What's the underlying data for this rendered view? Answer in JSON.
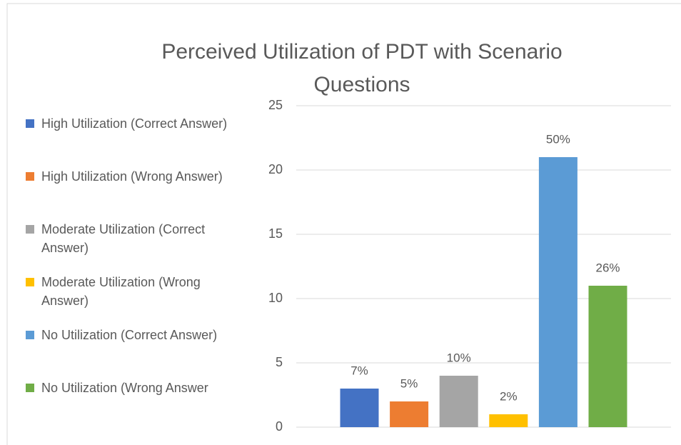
{
  "chart_data": {
    "type": "bar",
    "title": "Perceived Utilization of PDT with Scenario Questions",
    "categories": [
      null
    ],
    "series": [
      {
        "name": "High Utilization (Correct Answer)",
        "color": "#4472c4",
        "values": [
          3
        ],
        "value_labels": [
          "7%"
        ]
      },
      {
        "name": "High Utilization (Wrong Answer)",
        "color": "#ed7d31",
        "values": [
          2
        ],
        "value_labels": [
          "5%"
        ]
      },
      {
        "name": "Moderate Utilization (Correct Answer)",
        "color": "#a5a5a5",
        "values": [
          4
        ],
        "value_labels": [
          "10%"
        ]
      },
      {
        "name": "Moderate Utilization (Wrong Answer)",
        "color": "#ffc000",
        "values": [
          1
        ],
        "value_labels": [
          "2%"
        ]
      },
      {
        "name": "No Utilization (Correct Answer)",
        "color": "#5b9bd5",
        "values": [
          21
        ],
        "value_labels": [
          "50%"
        ]
      },
      {
        "name": "No Utilization (Wrong Answer",
        "color": "#70ad47",
        "values": [
          11
        ],
        "value_labels": [
          "26%"
        ]
      }
    ],
    "ylim": [
      0,
      25
    ],
    "yticks": [
      0,
      5,
      10,
      15,
      20,
      25
    ],
    "grid": true,
    "legend": "left"
  }
}
